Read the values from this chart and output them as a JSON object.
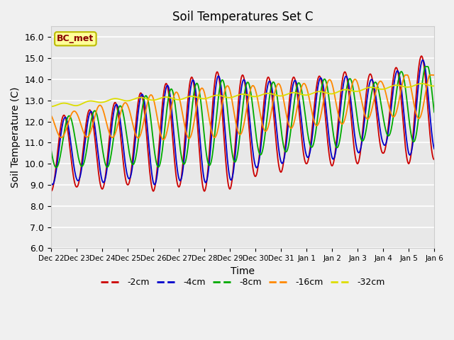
{
  "title": "Soil Temperatures Set C",
  "xlabel": "Time",
  "ylabel": "Soil Temperature (C)",
  "ylim": [
    6.0,
    16.5
  ],
  "yticks": [
    6.0,
    7.0,
    8.0,
    9.0,
    10.0,
    11.0,
    12.0,
    13.0,
    14.0,
    15.0,
    16.0
  ],
  "fig_bg_color": "#f0f0f0",
  "plot_bg_color": "#e8e8e8",
  "legend_label": "BC_met",
  "line_colors": {
    "-2cm": "#cc0000",
    "-4cm": "#0000cc",
    "-8cm": "#00aa00",
    "-16cm": "#ff8800",
    "-32cm": "#dddd00"
  },
  "x_tick_labels": [
    "Dec 22",
    "Dec 23",
    "Dec 24",
    "Dec 25",
    "Dec 26",
    "Dec 27",
    "Dec 28",
    "Dec 29",
    "Dec 30",
    "Dec 31",
    "Jan 1",
    "Jan 2",
    "Jan 3",
    "Jan 4",
    "Jan 5",
    "Jan 6"
  ],
  "amp_growth_2": [
    1.8,
    1.7,
    2.0,
    2.0,
    2.5,
    2.5,
    2.8,
    2.8,
    2.3,
    2.3,
    2.0,
    2.2,
    2.2,
    1.8,
    2.5,
    2.5
  ],
  "amp_growth_4": [
    1.6,
    1.5,
    1.8,
    1.8,
    2.3,
    2.3,
    2.5,
    2.5,
    2.0,
    2.0,
    1.8,
    2.0,
    1.8,
    1.5,
    2.2,
    2.2
  ],
  "amp_growth_8": [
    1.2,
    1.2,
    1.4,
    1.4,
    1.8,
    1.8,
    2.0,
    2.0,
    1.7,
    1.7,
    1.5,
    1.7,
    1.5,
    1.2,
    1.8,
    1.8
  ],
  "amp_growth_16": [
    0.6,
    0.6,
    0.8,
    0.8,
    1.1,
    1.1,
    1.2,
    1.2,
    1.1,
    1.1,
    1.0,
    1.1,
    1.0,
    0.8,
    1.1,
    1.1
  ],
  "baseline_2": [
    10.5,
    10.6,
    10.8,
    11.0,
    11.2,
    11.4,
    11.5,
    11.6,
    11.7,
    11.9,
    12.0,
    12.1,
    12.2,
    12.3,
    12.5,
    12.7
  ],
  "baseline_4": [
    10.6,
    10.7,
    10.9,
    11.1,
    11.3,
    11.5,
    11.6,
    11.7,
    11.8,
    12.0,
    12.1,
    12.2,
    12.3,
    12.4,
    12.6,
    12.8
  ],
  "baseline_8": [
    11.0,
    11.1,
    11.2,
    11.4,
    11.6,
    11.8,
    11.9,
    12.0,
    12.1,
    12.2,
    12.3,
    12.4,
    12.5,
    12.6,
    12.8,
    13.0
  ],
  "baseline_16": [
    11.8,
    11.9,
    12.0,
    12.1,
    12.2,
    12.3,
    12.4,
    12.5,
    12.6,
    12.7,
    12.8,
    12.9,
    13.0,
    13.1,
    13.2,
    13.3
  ],
  "baseline_32": [
    12.78,
    12.82,
    12.98,
    13.05,
    13.08,
    13.1,
    13.15,
    13.2,
    13.25,
    13.28,
    13.32,
    13.38,
    13.5,
    13.6,
    13.7,
    13.75
  ]
}
